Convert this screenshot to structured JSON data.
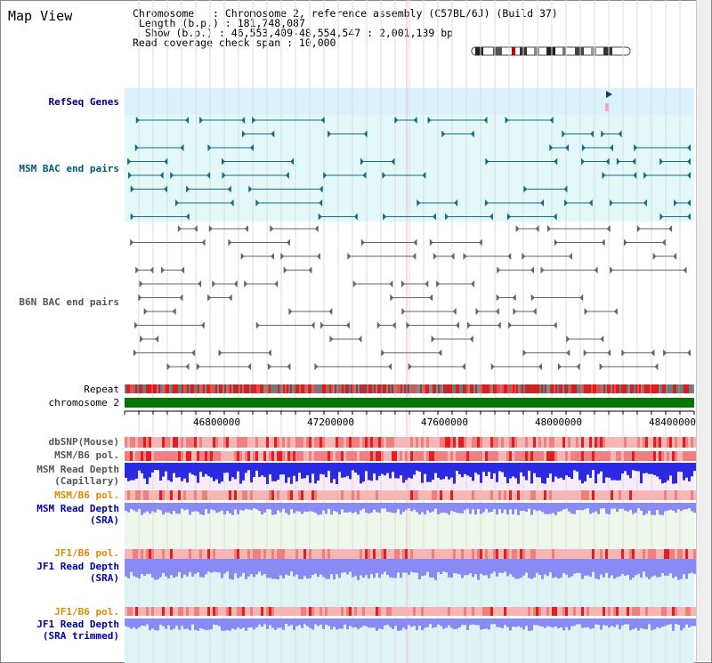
{
  "title": "Map View",
  "info": {
    "line1": "Chromosome   : Chromosome 2, reference assembly (C57BL/6J) (Build 37)",
    "line2": "Length (b.p.) : 181,748,087",
    "line3": " Show (b.p.) : 46,553,409-48,554,547 : 2,001,139 bp",
    "line4": "Read coverage check span : 10,000"
  },
  "labels": {
    "refseq": "RefSeq Genes",
    "msm_bac": "MSM BAC end pairs",
    "b6n_bac": "B6N BAC end pairs",
    "repeat": "Repeat",
    "chromosome": "chromosome 2",
    "dbsnp": "dbSNP(Mouse)",
    "msm_b6_pol_1": "MSM/B6 pol.",
    "msm_read_depth_cap_1": "MSM Read Depth",
    "msm_read_depth_cap_2": "(Capillary)",
    "msm_b6_pol_2": "MSM/B6 pol.",
    "msm_read_depth_sra_1": "MSM Read Depth",
    "msm_read_depth_sra_2": "(SRA)",
    "jf1_b6_pol_1": "JF1/B6 pol.",
    "jf1_read_depth_1": "JF1 Read Depth",
    "jf1_read_depth_2": "(SRA)",
    "jf1_b6_pol_2": "JF1/B6 pol.",
    "jf1_read_depth_trim_1": "JF1 Read Depth",
    "jf1_read_depth_trim_2": "(SRA trimmed)"
  },
  "ticks": [
    "46800000",
    "47200000",
    "47600000",
    "48000000",
    "48400000"
  ],
  "colors": {
    "refseq_bg": "#d9f2fb",
    "msm_bac_bg": "#e3f8f8",
    "msm_feature": "#136d87",
    "b6n_feature": "#666666",
    "chromosome_bar": "#007700",
    "depth_blue": "#3a3aee",
    "depth_light": "#8a8af5",
    "pol_red": "#e02020",
    "pol_pink": "#f6b6b6",
    "grid": "#dddddd"
  }
}
